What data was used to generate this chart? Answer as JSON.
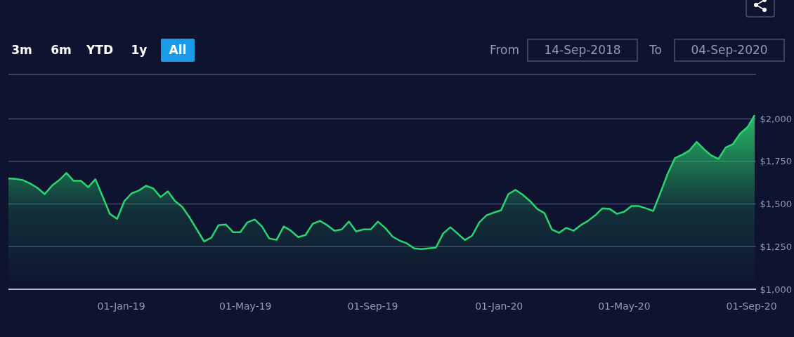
{
  "chart_data": {
    "type": "area",
    "x": [
      "2018-09-14",
      "2018-09-21",
      "2018-09-28",
      "2018-10-05",
      "2018-10-12",
      "2018-10-19",
      "2018-10-26",
      "2018-11-02",
      "2018-11-09",
      "2018-11-16",
      "2018-11-23",
      "2018-11-30",
      "2018-12-07",
      "2018-12-14",
      "2018-12-21",
      "2018-12-28",
      "2019-01-04",
      "2019-01-11",
      "2019-01-18",
      "2019-01-25",
      "2019-02-01",
      "2019-02-08",
      "2019-02-15",
      "2019-02-22",
      "2019-03-01",
      "2019-03-08",
      "2019-03-15",
      "2019-03-22",
      "2019-03-29",
      "2019-04-05",
      "2019-04-12",
      "2019-04-19",
      "2019-04-26",
      "2019-05-03",
      "2019-05-10",
      "2019-05-17",
      "2019-05-24",
      "2019-05-31",
      "2019-06-07",
      "2019-06-14",
      "2019-06-21",
      "2019-06-28",
      "2019-07-05",
      "2019-07-12",
      "2019-07-19",
      "2019-07-26",
      "2019-08-02",
      "2019-08-09",
      "2019-08-16",
      "2019-08-23",
      "2019-08-30",
      "2019-09-06",
      "2019-09-13",
      "2019-09-20",
      "2019-09-27",
      "2019-10-04",
      "2019-10-11",
      "2019-10-18",
      "2019-10-25",
      "2019-11-01",
      "2019-11-08",
      "2019-11-15",
      "2019-11-22",
      "2019-11-29",
      "2019-12-06",
      "2019-12-13",
      "2019-12-20",
      "2019-12-27",
      "2020-01-03",
      "2020-01-10",
      "2020-01-17",
      "2020-01-24",
      "2020-01-31",
      "2020-02-07",
      "2020-02-14",
      "2020-02-21",
      "2020-02-28",
      "2020-03-06",
      "2020-03-13",
      "2020-03-20",
      "2020-03-27",
      "2020-04-03",
      "2020-04-10",
      "2020-04-17",
      "2020-04-24",
      "2020-05-01",
      "2020-05-08",
      "2020-05-15",
      "2020-05-22",
      "2020-05-29",
      "2020-06-05",
      "2020-06-12",
      "2020-06-19",
      "2020-06-26",
      "2020-07-03",
      "2020-07-10",
      "2020-07-17",
      "2020-07-24",
      "2020-07-31",
      "2020-08-07",
      "2020-08-14",
      "2020-08-21",
      "2020-08-28",
      "2020-09-04"
    ],
    "series": [
      {
        "color": "#2ad46e",
        "values": [
          1650,
          1647,
          1640,
          1620,
          1595,
          1558,
          1607,
          1640,
          1682,
          1636,
          1636,
          1599,
          1645,
          1545,
          1442,
          1413,
          1517,
          1562,
          1579,
          1607,
          1591,
          1541,
          1574,
          1517,
          1483,
          1421,
          1351,
          1281,
          1302,
          1376,
          1380,
          1335,
          1335,
          1393,
          1409,
          1368,
          1298,
          1289,
          1368,
          1343,
          1306,
          1318,
          1384,
          1401,
          1376,
          1343,
          1351,
          1397,
          1339,
          1351,
          1351,
          1397,
          1360,
          1310,
          1285,
          1269,
          1240,
          1236,
          1240,
          1244,
          1327,
          1364,
          1327,
          1289,
          1314,
          1393,
          1434,
          1450,
          1463,
          1558,
          1583,
          1554,
          1517,
          1471,
          1446,
          1351,
          1331,
          1360,
          1343,
          1376,
          1401,
          1434,
          1475,
          1471,
          1442,
          1455,
          1488,
          1488,
          1475,
          1459,
          1566,
          1678,
          1769,
          1789,
          1814,
          1864,
          1822,
          1785,
          1764,
          1831,
          1851,
          1913,
          1950,
          2021
        ]
      }
    ],
    "xlim": [
      "2018-09-14",
      "2020-09-04"
    ],
    "xticks": [
      {
        "value": "2019-01-01",
        "label": "01-Jan-19"
      },
      {
        "value": "2019-05-01",
        "label": "01-May-19"
      },
      {
        "value": "2019-09-01",
        "label": "01-Sep-19"
      },
      {
        "value": "2020-01-01",
        "label": "01-Jan-20"
      },
      {
        "value": "2020-05-01",
        "label": "01-May-20"
      },
      {
        "value": "2020-09-01",
        "label": "01-Sep-20"
      }
    ],
    "ylim": [
      1000,
      2260
    ],
    "yticks": [
      {
        "value": 1000,
        "label": "$1,000"
      },
      {
        "value": 1250,
        "label": "$1,250"
      },
      {
        "value": 1500,
        "label": "$1,500"
      },
      {
        "value": 1750,
        "label": "$1,750"
      },
      {
        "value": 2000,
        "label": "$2,000"
      }
    ],
    "grid": "y",
    "annotations": [
      "3m",
      "6m",
      "YTD",
      "1y",
      "All",
      "From",
      "14-Sep-2018",
      "To",
      "04-Sep-2020"
    ]
  }
}
